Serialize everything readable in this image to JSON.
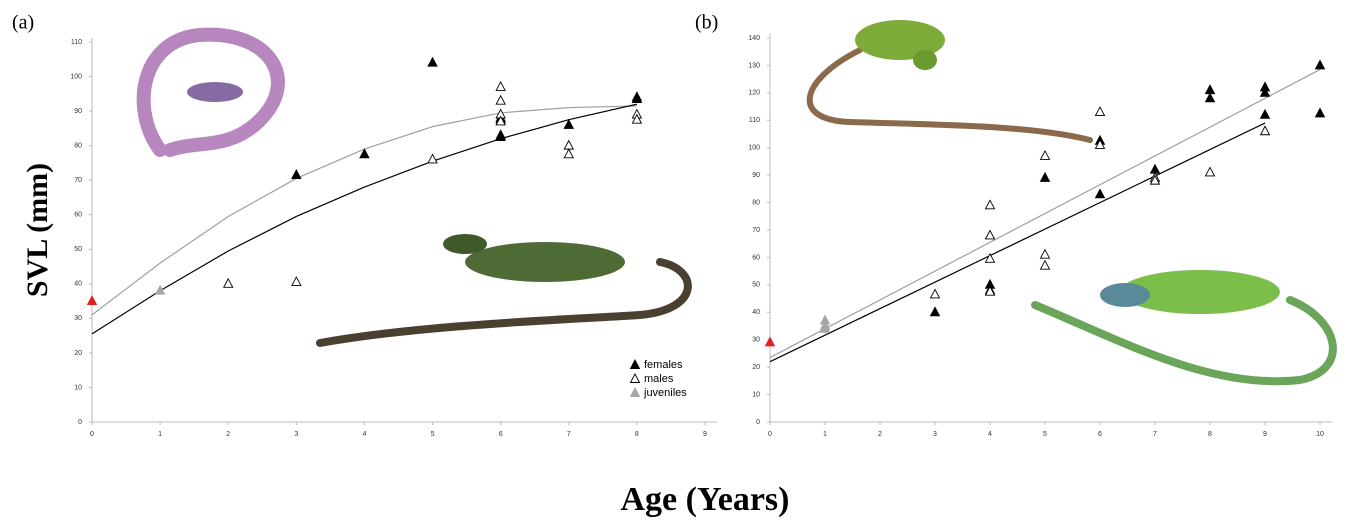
{
  "ylabel": "SVL (mm)",
  "xlabel": "Age (Years)",
  "chart_data": [
    {
      "type": "scatter",
      "label": "(a)",
      "xlim": [
        0,
        9
      ],
      "ylim": [
        0,
        110
      ],
      "xticks": [
        0,
        1,
        2,
        3,
        4,
        5,
        6,
        7,
        8,
        9
      ],
      "yticks": [
        0,
        10,
        20,
        30,
        40,
        50,
        60,
        70,
        80,
        90,
        100,
        110
      ],
      "legend": "lower right",
      "series": [
        {
          "name": "females",
          "color": "#000000",
          "marker": "filled",
          "x": [
            3,
            4,
            5,
            6,
            6,
            6,
            6,
            7,
            8,
            8
          ],
          "values": [
            71.5,
            77.5,
            104,
            88,
            87.5,
            83,
            82.5,
            86,
            94,
            93.5
          ]
        },
        {
          "name": "males",
          "color": "#000000",
          "marker": "open",
          "x": [
            2,
            3,
            5,
            6,
            6,
            6,
            6,
            7,
            7,
            8,
            8
          ],
          "values": [
            40,
            40.5,
            76,
            97,
            93,
            89,
            87,
            80,
            77.5,
            89,
            87.5
          ]
        },
        {
          "name": "juveniles",
          "color": "#a6a6a6",
          "marker": "filled",
          "x": [
            1
          ],
          "values": [
            38
          ]
        },
        {
          "color": "#e02020",
          "marker": "filled",
          "x": [
            0
          ],
          "values": [
            35
          ]
        }
      ],
      "trend_lines": [
        {
          "color": "#a0a0a0",
          "x": [
            0,
            1,
            2,
            3,
            4,
            5,
            6,
            7,
            8
          ],
          "values": [
            31,
            46,
            59.5,
            70.5,
            79,
            85.5,
            89.5,
            91,
            91.5
          ]
        },
        {
          "color": "#000000",
          "x": [
            0,
            1,
            2,
            3,
            4,
            5,
            6,
            7,
            8
          ],
          "values": [
            25.5,
            38,
            49.5,
            59.5,
            68,
            75.5,
            82,
            87.5,
            92
          ]
        }
      ]
    },
    {
      "type": "scatter",
      "label": "(b)",
      "xlim": [
        0,
        10
      ],
      "ylim": [
        0,
        140
      ],
      "xticks": [
        0,
        1,
        2,
        3,
        4,
        5,
        6,
        7,
        8,
        9,
        10
      ],
      "yticks": [
        0,
        10,
        20,
        30,
        40,
        50,
        60,
        70,
        80,
        90,
        100,
        110,
        120,
        130,
        140
      ],
      "series": [
        {
          "name": "females",
          "color": "#000000",
          "marker": "filled",
          "x": [
            3,
            4,
            4,
            5,
            6,
            6,
            7,
            8,
            8,
            9,
            9,
            9,
            10,
            10
          ],
          "values": [
            40,
            50,
            48,
            89,
            102.5,
            83,
            92,
            121,
            118,
            122,
            120,
            112,
            130,
            112.5
          ]
        },
        {
          "name": "males",
          "color": "#000000",
          "marker": "open",
          "x": [
            3,
            4,
            4,
            4,
            4,
            5,
            5,
            5,
            6,
            6,
            7,
            7,
            8,
            9
          ],
          "values": [
            46.5,
            79,
            68,
            59.5,
            47.5,
            97,
            61,
            57,
            113,
            101,
            89,
            88,
            91,
            106
          ]
        },
        {
          "name": "juveniles",
          "color": "#a6a6a6",
          "marker": "filled",
          "x": [
            1,
            1,
            1
          ],
          "values": [
            37,
            35,
            34
          ]
        },
        {
          "color": "#e02020",
          "marker": "filled",
          "x": [
            0
          ],
          "values": [
            29
          ]
        }
      ],
      "trend_lines": [
        {
          "color": "#a0a0a0",
          "x": [
            0,
            10
          ],
          "values": [
            23.5,
            128.5
          ]
        },
        {
          "color": "#000000",
          "x": [
            0,
            9
          ],
          "values": [
            22,
            109
          ]
        }
      ]
    }
  ]
}
